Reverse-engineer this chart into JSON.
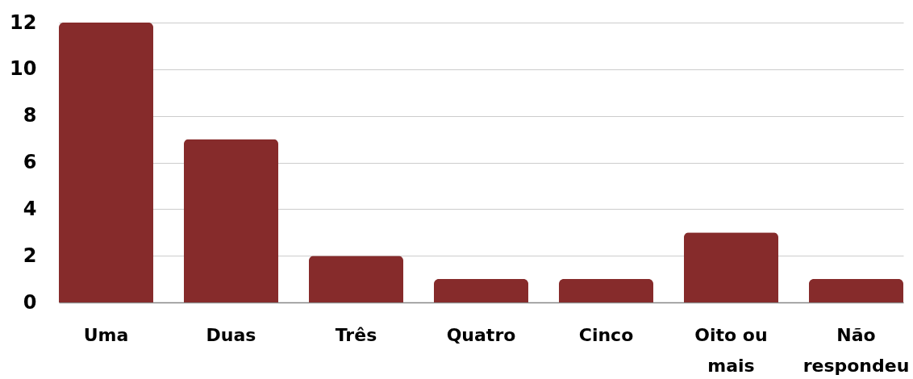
{
  "chart_data": {
    "type": "bar",
    "categories": [
      "Uma",
      "Duas",
      "Três",
      "Quatro",
      "Cinco",
      "Oito ou mais",
      "Não respondeu"
    ],
    "values": [
      12,
      7,
      2,
      1,
      1,
      3,
      1
    ],
    "color": "#862b2b",
    "ylim": [
      0,
      12
    ],
    "yticks": [
      0,
      2,
      4,
      6,
      8,
      10,
      12
    ],
    "grid": "y"
  }
}
